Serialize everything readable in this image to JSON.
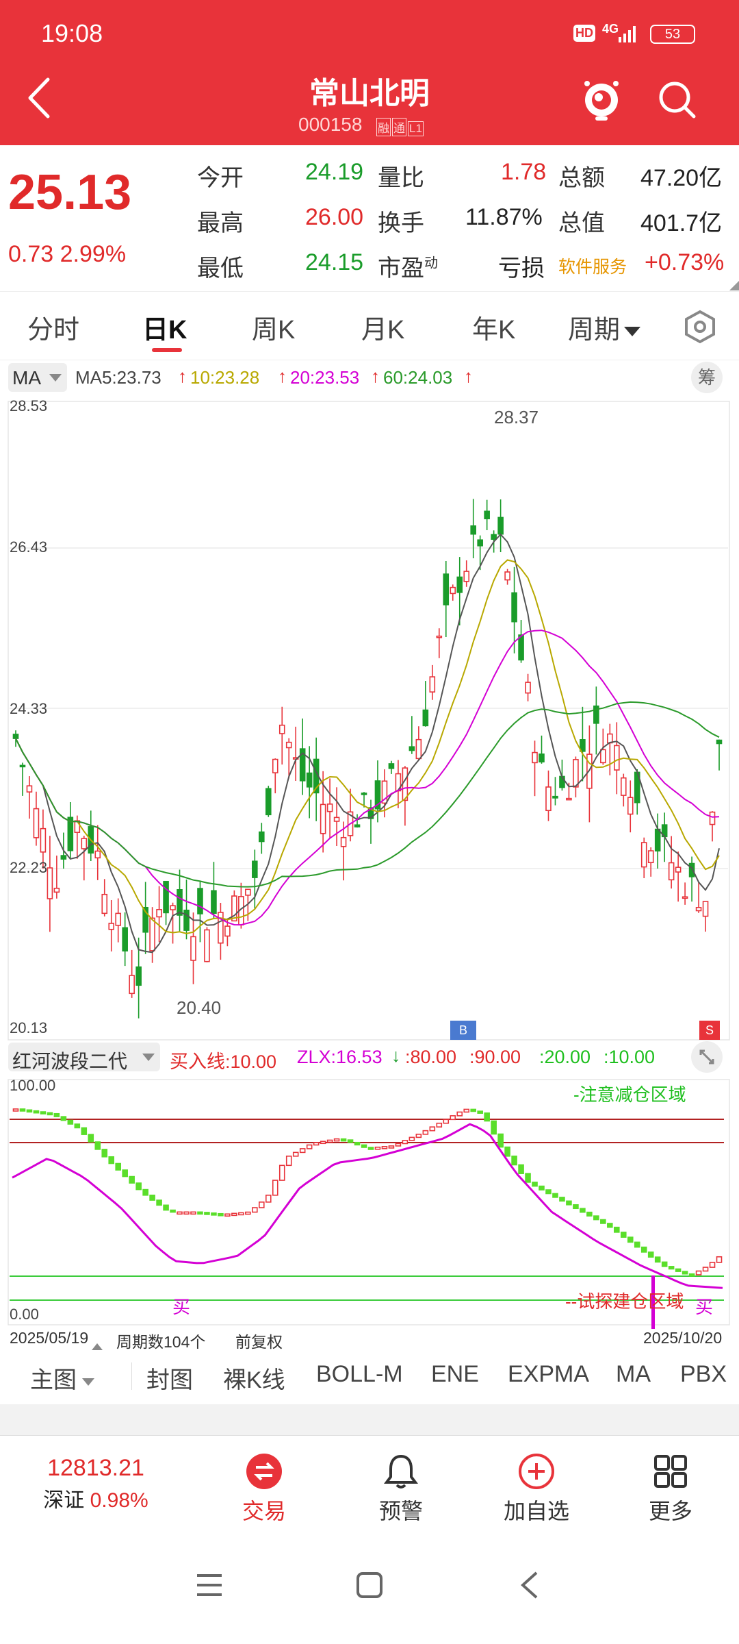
{
  "status": {
    "time": "19:08",
    "hd": "HD",
    "net": "4G",
    "battery": "53"
  },
  "header": {
    "title": "常山北明",
    "code": "000158",
    "badges": [
      "融",
      "通",
      "L1"
    ]
  },
  "quote": {
    "price": "25.13",
    "change": "0.73",
    "change_pct": "2.99%",
    "open_label": "今开",
    "open": "24.19",
    "high_label": "最高",
    "high": "26.00",
    "low_label": "最低",
    "low": "24.15",
    "vol_ratio_label": "量比",
    "vol_ratio": "1.78",
    "turnover_label": "换手",
    "turnover": "11.87%",
    "pe_label": "市盈",
    "pe_sup": "动",
    "pe": "亏损",
    "amount_label": "总额",
    "amount": "47.20亿",
    "mcap_label": "总值",
    "mcap": "401.7亿",
    "sector": "软件服务",
    "sector_pct": "+0.73%"
  },
  "tabs": [
    "分时",
    "日K",
    "周K",
    "月K",
    "年K",
    "周期"
  ],
  "active_tab": "日K",
  "ma_bar": {
    "selector": "MA",
    "ma5": "MA5:23.73",
    "ma10": "10:23.28",
    "ma20": "20:23.53",
    "ma60": "60:24.03",
    "chip_btn": "筹"
  },
  "main_chart": {
    "y_labels": [
      "28.53",
      "26.43",
      "24.33",
      "22.23",
      "20.13"
    ],
    "high_label": "28.37",
    "low_label": "20.40",
    "marker_buy": "B",
    "marker_sell": "S"
  },
  "indicator": {
    "selector": "红河波段二代",
    "buy_line": "买入线:10.00",
    "zlx": "ZLX:16.53",
    "l80": ":80.00",
    "l90": ":90.00",
    "l20": ":20.00",
    "l10": ":10.00",
    "top_label": "100.00",
    "bottom_label": "0.00",
    "zone_top": "-注意减仓区域",
    "zone_bottom": "--试探建仓区域",
    "buy_mark_left": "买",
    "buy_mark_right": "买",
    "date_start": "2025/05/19",
    "period_count": "周期数104个",
    "fq": "前复权",
    "date_end": "2025/10/20"
  },
  "bottom_tabs": [
    "主图",
    "封图",
    "裸K线",
    "BOLL-M",
    "ENE",
    "EXPMA",
    "MA",
    "PBX"
  ],
  "active_bottom_tab": "MA",
  "bottom_nav": {
    "index_value": "12813.21",
    "index_name": "深证",
    "index_pct": "0.98%",
    "trade": "交易",
    "alert": "预警",
    "add": "加自选",
    "more": "更多"
  },
  "colors": {
    "red": "#e8333a",
    "green": "#1a9c2a",
    "magenta": "#d400d4",
    "olive": "#b8a800",
    "ma60": "#2a9a2a"
  }
}
